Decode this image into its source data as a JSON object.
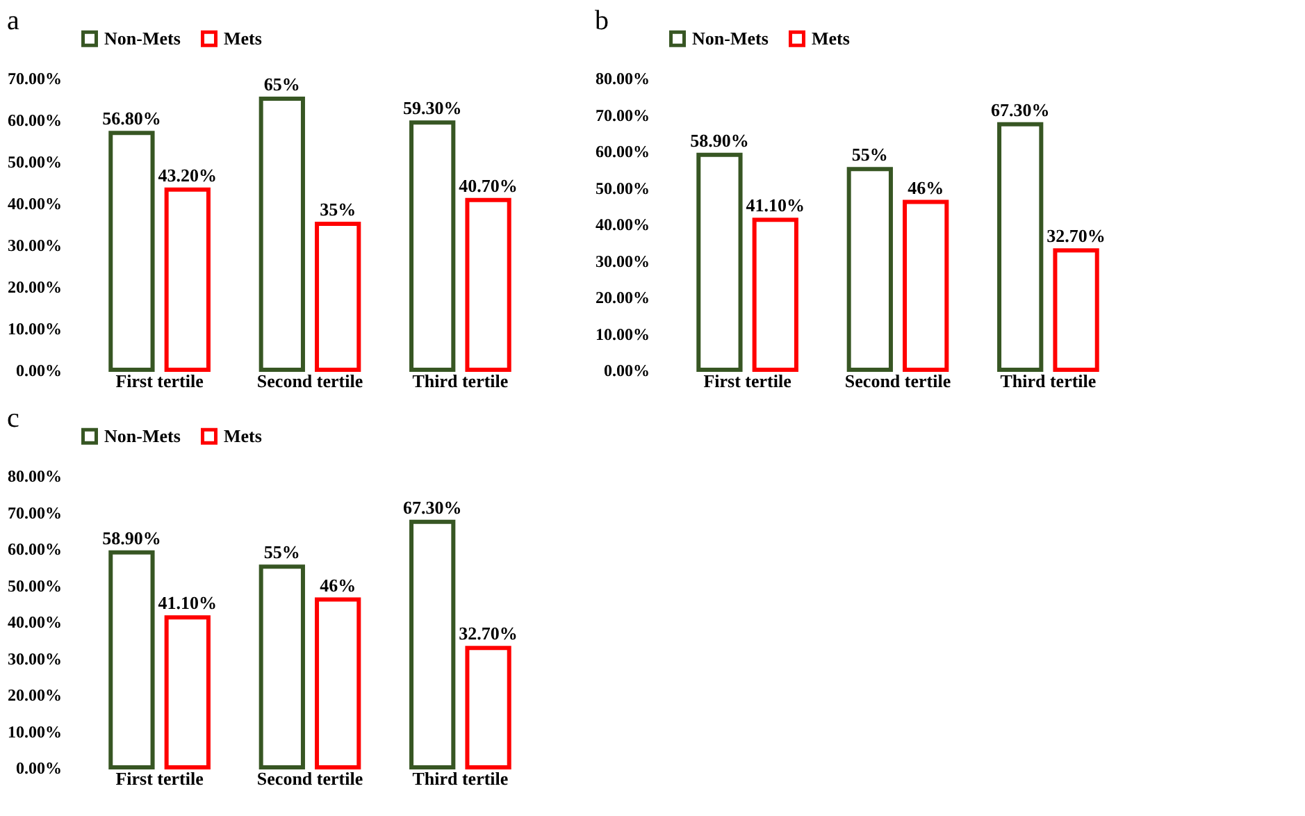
{
  "chart_data": [
    {
      "type": "bar",
      "title": "a",
      "categories": [
        "First tertile",
        "Second tertile",
        "Third tertile"
      ],
      "series": [
        {
          "name": "Non-Mets",
          "color": "#375623",
          "values": [
            56.8,
            65,
            59.3
          ],
          "value_labels": [
            "56.80%",
            "65%",
            "59.30%"
          ]
        },
        {
          "name": "Mets",
          "color": "#ff0000",
          "values": [
            43.2,
            35,
            40.7
          ],
          "value_labels": [
            "43.20%",
            "35%",
            "40.70%"
          ]
        }
      ],
      "ylim": [
        0,
        70
      ],
      "yticks": [
        {
          "value": 0,
          "label": "0.00%"
        },
        {
          "value": 10,
          "label": "10.00%"
        },
        {
          "value": 20,
          "label": "20.00%"
        },
        {
          "value": 30,
          "label": "30.00%"
        },
        {
          "value": 40,
          "label": "40.00%"
        },
        {
          "value": 50,
          "label": "50.00%"
        },
        {
          "value": 60,
          "label": "60.00%"
        },
        {
          "value": 70,
          "label": "70.00%"
        }
      ],
      "grid": false,
      "legend": "top"
    },
    {
      "type": "bar",
      "title": "b",
      "categories": [
        "First tertile",
        "Second tertile",
        "Third tertile"
      ],
      "series": [
        {
          "name": "Non-Mets",
          "color": "#375623",
          "values": [
            58.9,
            55,
            67.3
          ],
          "value_labels": [
            "58.90%",
            "55%",
            "67.30%"
          ]
        },
        {
          "name": "Mets",
          "color": "#ff0000",
          "values": [
            41.1,
            46,
            32.7
          ],
          "value_labels": [
            "41.10%",
            "46%",
            "32.70%"
          ]
        }
      ],
      "ylim": [
        0,
        80
      ],
      "yticks": [
        {
          "value": 0,
          "label": "0.00%"
        },
        {
          "value": 10,
          "label": "10.00%"
        },
        {
          "value": 20,
          "label": "20.00%"
        },
        {
          "value": 30,
          "label": "30.00%"
        },
        {
          "value": 40,
          "label": "40.00%"
        },
        {
          "value": 50,
          "label": "50.00%"
        },
        {
          "value": 60,
          "label": "60.00%"
        },
        {
          "value": 70,
          "label": "70.00%"
        },
        {
          "value": 80,
          "label": "80.00%"
        }
      ],
      "grid": false,
      "legend": "top"
    },
    {
      "type": "bar",
      "title": "c",
      "categories": [
        "First tertile",
        "Second tertile",
        "Third tertile"
      ],
      "series": [
        {
          "name": "Non-Mets",
          "color": "#375623",
          "values": [
            58.9,
            55,
            67.3
          ],
          "value_labels": [
            "58.90%",
            "55%",
            "67.30%"
          ]
        },
        {
          "name": "Mets",
          "color": "#ff0000",
          "values": [
            41.1,
            46,
            32.7
          ],
          "value_labels": [
            "41.10%",
            "46%",
            "32.70%"
          ]
        }
      ],
      "ylim": [
        0,
        80
      ],
      "yticks": [
        {
          "value": 0,
          "label": "0.00%"
        },
        {
          "value": 10,
          "label": "10.00%"
        },
        {
          "value": 20,
          "label": "20.00%"
        },
        {
          "value": 30,
          "label": "30.00%"
        },
        {
          "value": 40,
          "label": "40.00%"
        },
        {
          "value": 50,
          "label": "50.00%"
        },
        {
          "value": 60,
          "label": "60.00%"
        },
        {
          "value": 70,
          "label": "70.00%"
        },
        {
          "value": 80,
          "label": "80.00%"
        }
      ],
      "grid": false,
      "legend": "top"
    }
  ]
}
